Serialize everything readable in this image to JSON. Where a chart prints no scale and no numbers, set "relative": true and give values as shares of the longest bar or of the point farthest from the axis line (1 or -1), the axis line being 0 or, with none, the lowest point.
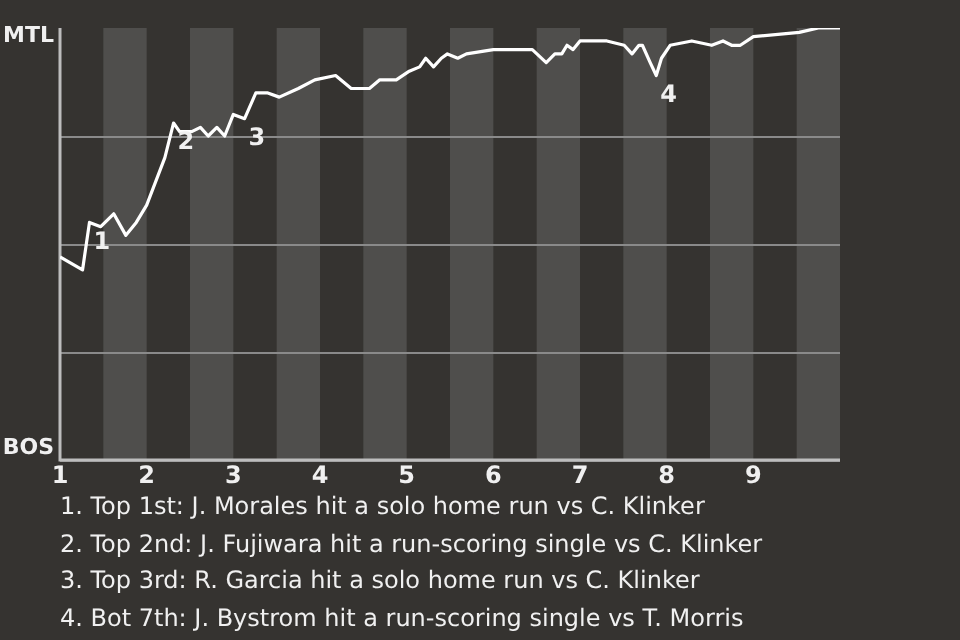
{
  "chart_data": {
    "type": "line",
    "relative": true,
    "x": [
      1.0,
      1.26,
      1.34,
      1.47,
      1.62,
      1.76,
      1.88,
      2.0,
      2.21,
      2.31,
      2.38,
      2.52,
      2.62,
      2.71,
      2.81,
      2.9,
      3.0,
      3.13,
      3.26,
      3.39,
      3.53,
      3.75,
      3.94,
      4.18,
      4.36,
      4.57,
      4.69,
      4.88,
      5.03,
      5.15,
      5.22,
      5.31,
      5.4,
      5.47,
      5.59,
      5.69,
      6.0,
      6.18,
      6.45,
      6.61,
      6.71,
      6.79,
      6.85,
      6.92,
      7.0,
      7.31,
      7.51,
      7.6,
      7.68,
      7.72,
      7.81,
      7.88,
      7.94,
      8.04,
      8.29,
      8.52,
      8.65,
      8.75,
      8.85,
      9.0,
      9.53,
      9.75,
      10.0
    ],
    "series": [
      {
        "color": "#ffffff",
        "values": [
          0.47,
          0.44,
          0.55,
          0.54,
          0.57,
          0.52,
          0.55,
          0.59,
          0.7,
          0.78,
          0.76,
          0.76,
          0.77,
          0.75,
          0.77,
          0.75,
          0.8,
          0.79,
          0.85,
          0.85,
          0.84,
          0.86,
          0.88,
          0.89,
          0.86,
          0.86,
          0.88,
          0.88,
          0.9,
          0.91,
          0.93,
          0.91,
          0.93,
          0.94,
          0.93,
          0.94,
          0.95,
          0.95,
          0.95,
          0.92,
          0.94,
          0.94,
          0.96,
          0.95,
          0.97,
          0.97,
          0.96,
          0.94,
          0.96,
          0.96,
          0.92,
          0.89,
          0.93,
          0.96,
          0.97,
          0.96,
          0.97,
          0.96,
          0.96,
          0.98,
          0.99,
          1,
          1
        ]
      }
    ],
    "xlim": [
      1,
      10
    ],
    "xticks": [
      1,
      2,
      3,
      4,
      5,
      6,
      7,
      8,
      9
    ],
    "grid": "y",
    "legend": false,
    "marker": "none",
    "line_style": "solid",
    "bands": [
      {
        "axis": "x",
        "from": 1.5,
        "to": 2,
        "color": "#4f4e4c"
      },
      {
        "axis": "x",
        "from": 2.5,
        "to": 3,
        "color": "#4f4e4c"
      },
      {
        "axis": "x",
        "from": 3.5,
        "to": 4,
        "color": "#4f4e4c"
      },
      {
        "axis": "x",
        "from": 4.5,
        "to": 5,
        "color": "#4f4e4c"
      },
      {
        "axis": "x",
        "from": 5.5,
        "to": 6,
        "color": "#4f4e4c"
      },
      {
        "axis": "x",
        "from": 6.5,
        "to": 7,
        "color": "#4f4e4c"
      },
      {
        "axis": "x",
        "from": 7.5,
        "to": 8,
        "color": "#4f4e4c"
      },
      {
        "axis": "x",
        "from": 8.5,
        "to": 9,
        "color": "#4f4e4c"
      },
      {
        "axis": "x",
        "from": 9.5,
        "to": 10,
        "color": "#4f4e4c"
      }
    ],
    "annotations": [
      "MTL",
      "BOS",
      {
        "text": "1",
        "x": 1.34,
        "y": 0.55
      },
      {
        "text": "2",
        "x": 2.31,
        "y": 0.78
      },
      {
        "text": "3",
        "x": 3.13,
        "y": 0.79
      },
      {
        "text": "4",
        "x": 7.88,
        "y": 0.89
      },
      "1. Top 1st: J. Morales hit a solo home run vs C. Klinker",
      "2. Top 2nd: J. Fujiwara hit a run-scoring single vs C. Klinker",
      "3. Top 3rd: R. Garcia hit a solo home run vs C. Klinker",
      "4. Bot 7th: J. Bystrom hit a run-scoring single vs T. Morris"
    ]
  }
}
